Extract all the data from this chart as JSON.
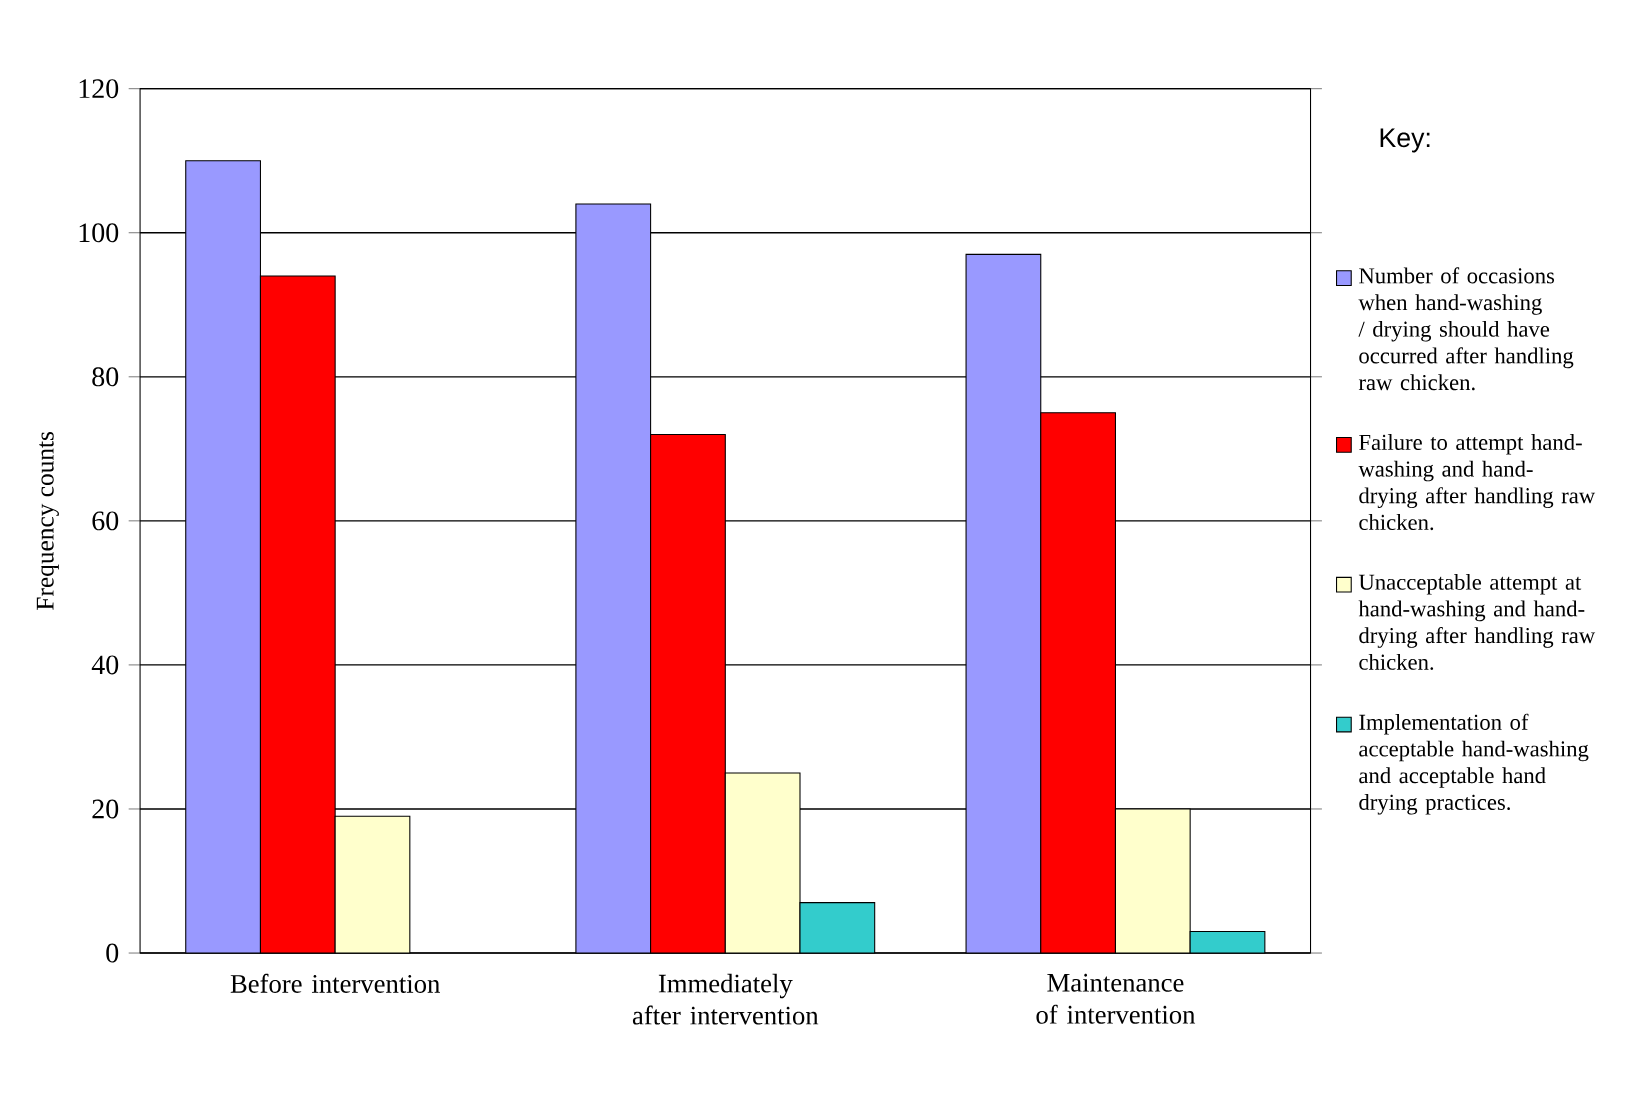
{
  "chart_data": {
    "type": "bar",
    "ylabel": "Frequency counts",
    "legend_title": "Key:",
    "legend": "right",
    "grid": "y",
    "categories": [
      "Before intervention",
      "Immediately after intervention",
      "Maintenance of intervention"
    ],
    "ylim": [
      0,
      120
    ],
    "yticks": [
      0,
      20,
      40,
      60,
      80,
      100,
      120
    ],
    "series": [
      {
        "name": "Number of occasions when hand-washing / drying should have occurred after handling raw chicken.",
        "color": "#9999ff",
        "values": [
          110,
          104,
          97
        ]
      },
      {
        "name": "Failure to attempt hand-washing and hand-drying after handling raw chicken.",
        "color": "#ff0000",
        "values": [
          94,
          72,
          75
        ]
      },
      {
        "name": "Unacceptable attempt at hand-washing and hand-drying after handling raw chicken.",
        "color": "#ffffcc",
        "values": [
          19,
          25,
          20
        ]
      },
      {
        "name": "Implementation of acceptable hand-washing and acceptable hand drying practices.",
        "color": "#33cccc",
        "values": [
          null,
          7,
          3
        ]
      }
    ]
  }
}
